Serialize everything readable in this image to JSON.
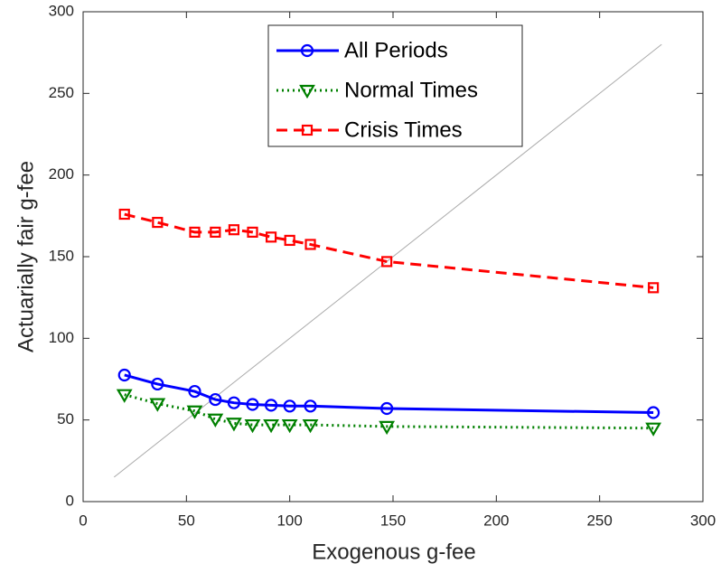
{
  "chart_data": {
    "type": "line",
    "x_label": "Exogenous g-fee",
    "y_label": "Actuarially fair g-fee",
    "x": [
      20,
      36,
      54,
      64,
      73,
      82,
      91,
      100,
      110,
      147,
      276
    ],
    "series": [
      {
        "name": "All Periods",
        "color": "#0000ff",
        "marker": "circle",
        "line_style": "solid",
        "values": [
          77.5,
          72,
          67.5,
          62.5,
          60.5,
          59.5,
          59,
          58.5,
          58.5,
          57,
          54.5
        ]
      },
      {
        "name": "Normal Times",
        "color": "#008000",
        "marker": "triangle-down",
        "line_style": "dotted",
        "values": [
          65.5,
          60,
          55.5,
          50.5,
          48,
          47,
          47,
          47,
          47,
          46,
          45
        ]
      },
      {
        "name": "Crisis Times",
        "color": "#ff0000",
        "marker": "square",
        "line_style": "dashed",
        "values": [
          176,
          171,
          165,
          165,
          166.5,
          165,
          162,
          160,
          157.5,
          147,
          131
        ]
      }
    ],
    "reference_line": {
      "x": [
        15,
        280
      ],
      "y": [
        15,
        280
      ],
      "color": "#aaaaaa"
    },
    "xlim": [
      0,
      300
    ],
    "xticks": [
      0,
      50,
      100,
      150,
      200,
      250,
      300
    ],
    "ylim": [
      0,
      300
    ],
    "yticks": [
      0,
      50,
      100,
      150,
      200,
      250,
      300
    ],
    "grid": false,
    "legend": "top"
  }
}
